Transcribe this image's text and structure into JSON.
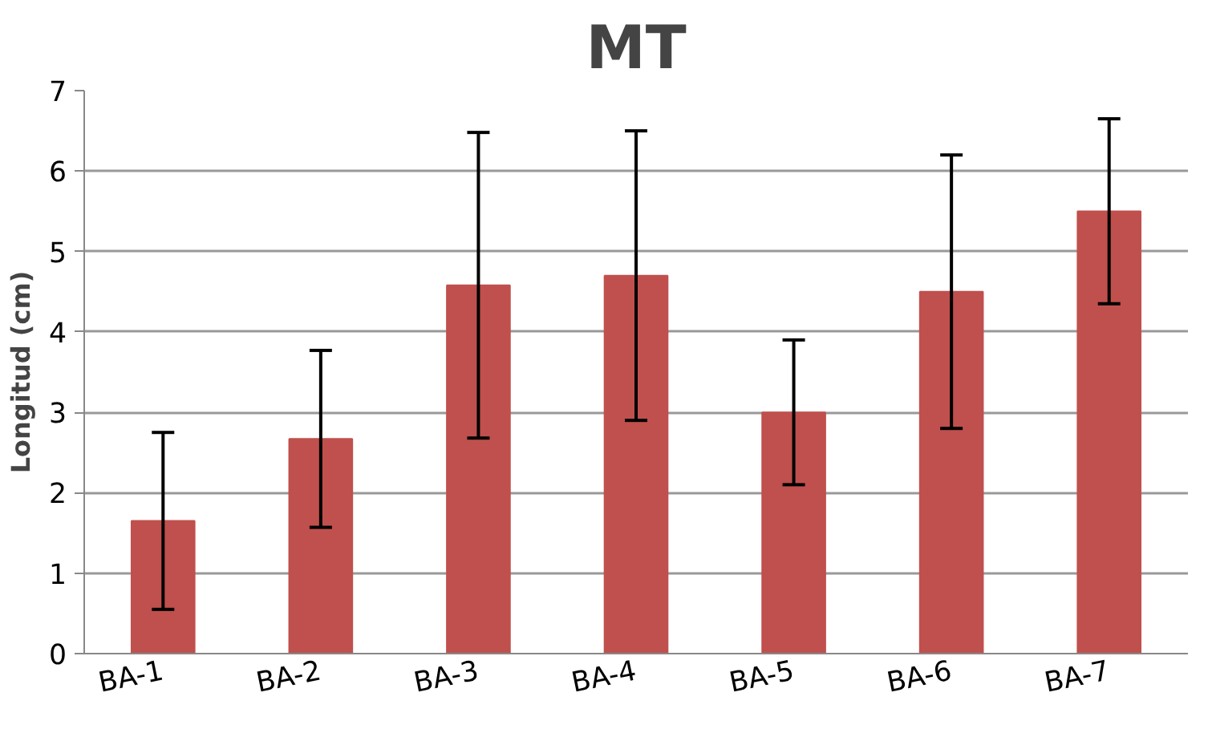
{
  "chart_data": {
    "type": "bar",
    "title": "MT",
    "ylabel": "Longitud (cm)",
    "categories": [
      "BA-1",
      "BA-2",
      "BA-3",
      "BA-4",
      "BA-5",
      "BA-6",
      "BA-7"
    ],
    "values": [
      1.65,
      2.67,
      4.58,
      4.7,
      3.0,
      4.5,
      5.5
    ],
    "errors": [
      1.1,
      1.1,
      1.9,
      1.8,
      0.9,
      1.7,
      1.15
    ],
    "color": "#c0504d",
    "ylim": [
      0,
      7
    ],
    "yticks": [
      0,
      1,
      2,
      3,
      4,
      5,
      6,
      7
    ],
    "grid": "y"
  }
}
